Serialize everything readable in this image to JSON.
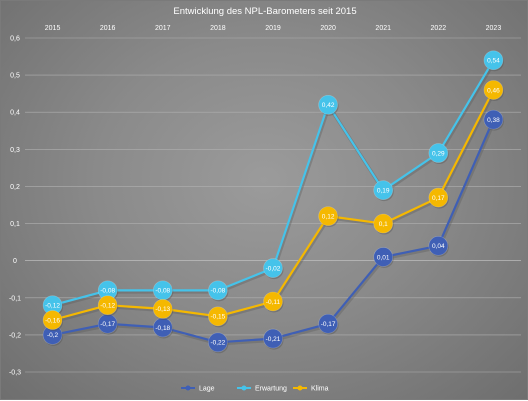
{
  "chart_data": {
    "type": "line",
    "title": "Entwicklung des NPL-Barometers seit 2015",
    "xlabel": "",
    "ylabel": "",
    "categories": [
      "2015",
      "2016",
      "2017",
      "2018",
      "2019",
      "2020",
      "2021",
      "2022",
      "2023"
    ],
    "ylim": [
      -0.3,
      0.6
    ],
    "yticks": [
      "0,6",
      "0,5",
      "0,4",
      "0,3",
      "0,2",
      "0,1",
      "0",
      "-0,1",
      "-0,2",
      "-0,3"
    ],
    "ytick_values": [
      0.6,
      0.5,
      0.4,
      0.3,
      0.2,
      0.1,
      0,
      -0.1,
      -0.2,
      -0.3
    ],
    "x_axis_position": "top",
    "grid": true,
    "legend_position": "bottom",
    "series": [
      {
        "name": "Lage",
        "color": "#3f5fb5",
        "values": [
          -0.2,
          -0.17,
          -0.18,
          -0.22,
          -0.21,
          -0.17,
          0.01,
          0.04,
          0.38
        ],
        "labels": [
          "-0,2",
          "-0,17",
          "-0,18",
          "-0,22",
          "-0,21",
          "-0,17",
          "0,01",
          "0,04",
          "0,38"
        ]
      },
      {
        "name": "Erwartung",
        "color": "#45c3ea",
        "values": [
          -0.12,
          -0.08,
          -0.08,
          -0.08,
          -0.02,
          0.42,
          0.19,
          0.29,
          0.54
        ],
        "labels": [
          "-0,12",
          "-0,08",
          "-0,08",
          "-0,08",
          "-0,02",
          "0,42",
          "0,19",
          "0,29",
          "0,54"
        ]
      },
      {
        "name": "Klima",
        "color": "#f5b800",
        "values": [
          -0.16,
          -0.12,
          -0.13,
          -0.15,
          -0.11,
          0.12,
          0.1,
          0.17,
          0.46
        ],
        "labels": [
          "-0,16",
          "-0,12",
          "-0,13",
          "-0,15",
          "-0,11",
          "0,12",
          "0,1",
          "0,17",
          "0,46"
        ]
      }
    ]
  }
}
